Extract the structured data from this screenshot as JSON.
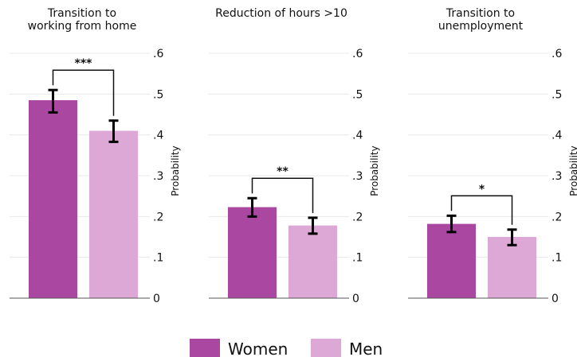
{
  "chart_data": [
    {
      "type": "bar",
      "title_lines": [
        "Transition to",
        "working from home"
      ],
      "categories": [
        "Women",
        "Men"
      ],
      "values": [
        0.485,
        0.41
      ],
      "ci_low": [
        0.455,
        0.383
      ],
      "ci_high": [
        0.51,
        0.435
      ],
      "significance": "***",
      "ylabel": "Probability",
      "ylim": [
        0,
        0.6
      ],
      "yticks": [
        0,
        0.1,
        0.2,
        0.3,
        0.4,
        0.5,
        0.6
      ],
      "ytick_labels": [
        "0",
        ".1",
        ".2",
        ".3",
        ".4",
        ".5",
        ".6"
      ],
      "grid": true
    },
    {
      "type": "bar",
      "title_lines": [
        "Reduction of  hours >10"
      ],
      "categories": [
        "Women",
        "Men"
      ],
      "values": [
        0.223,
        0.178
      ],
      "ci_low": [
        0.2,
        0.158
      ],
      "ci_high": [
        0.245,
        0.197
      ],
      "significance": "**",
      "ylabel": "Probability",
      "ylim": [
        0,
        0.6
      ],
      "yticks": [
        0,
        0.1,
        0.2,
        0.3,
        0.4,
        0.5,
        0.6
      ],
      "ytick_labels": [
        "0",
        ".1",
        ".2",
        ".3",
        ".4",
        ".5",
        ".6"
      ],
      "grid": true
    },
    {
      "type": "bar",
      "title_lines": [
        "Transition to",
        "unemployment"
      ],
      "categories": [
        "Women",
        "Men"
      ],
      "values": [
        0.182,
        0.15
      ],
      "ci_low": [
        0.162,
        0.13
      ],
      "ci_high": [
        0.202,
        0.168
      ],
      "significance": "*",
      "ylabel": "Probability",
      "ylim": [
        0,
        0.6
      ],
      "yticks": [
        0,
        0.1,
        0.2,
        0.3,
        0.4,
        0.5,
        0.6
      ],
      "ytick_labels": [
        "0",
        ".1",
        ".2",
        ".3",
        ".4",
        ".5",
        ".6"
      ],
      "grid": true
    }
  ],
  "legend": {
    "placement": "bottom",
    "items": [
      {
        "label": "Women",
        "color": "#aa47a1"
      },
      {
        "label": "Men",
        "color": "#dda8d6"
      }
    ]
  },
  "colors": {
    "women": "#aa47a1",
    "men": "#dda8d6",
    "grid": "#e8e8e8",
    "axis": "#555555",
    "error_bar": "#000000"
  }
}
